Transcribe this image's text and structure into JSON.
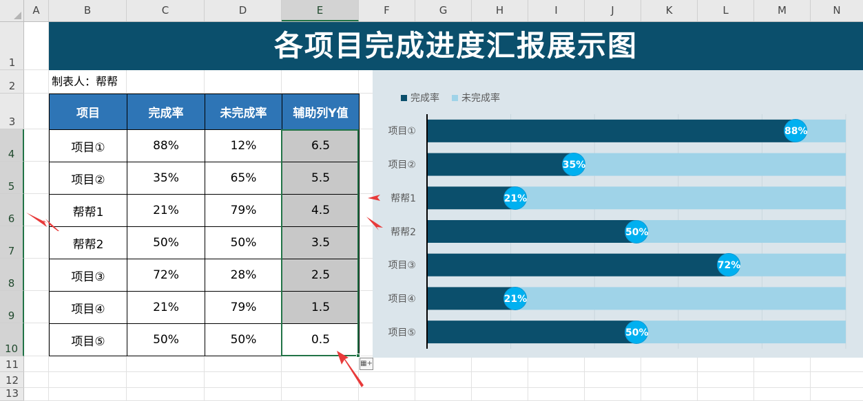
{
  "columns": [
    "A",
    "B",
    "C",
    "D",
    "E",
    "F",
    "G",
    "H",
    "I",
    "J",
    "K",
    "L",
    "M",
    "N"
  ],
  "selected_column": "E",
  "rows": [
    "1",
    "2",
    "3",
    "4",
    "5",
    "6",
    "7",
    "8",
    "9",
    "10",
    "11",
    "12",
    "13"
  ],
  "title": "各项目完成进度汇报展示图",
  "maker": "制表人：帮帮",
  "table": {
    "headers": [
      "项目",
      "完成率",
      "未完成率",
      "辅助列Y值"
    ],
    "rows": [
      [
        "项目①",
        "88%",
        "12%",
        "6.5"
      ],
      [
        "项目②",
        "35%",
        "65%",
        "5.5"
      ],
      [
        "帮帮1",
        "21%",
        "79%",
        "4.5"
      ],
      [
        "帮帮2",
        "50%",
        "50%",
        "3.5"
      ],
      [
        "项目③",
        "72%",
        "28%",
        "2.5"
      ],
      [
        "项目④",
        "21%",
        "79%",
        "1.5"
      ],
      [
        "项目⑤",
        "50%",
        "50%",
        "0.5"
      ]
    ]
  },
  "chart_data": {
    "type": "bar",
    "orientation": "horizontal",
    "stacked": true,
    "categories": [
      "项目①",
      "项目②",
      "帮帮1",
      "帮帮2",
      "项目③",
      "项目④",
      "项目⑤"
    ],
    "series": [
      {
        "name": "完成率",
        "values": [
          88,
          35,
          21,
          50,
          72,
          21,
          50
        ],
        "color": "#0b4f6c"
      },
      {
        "name": "未完成率",
        "values": [
          12,
          65,
          79,
          50,
          28,
          79,
          50
        ],
        "color": "#9fd3e8"
      }
    ],
    "data_labels": [
      "88%",
      "35%",
      "21%",
      "50%",
      "72%",
      "21%",
      "50%"
    ],
    "xlim": [
      0,
      100
    ],
    "legend_position": "top-left",
    "grid": true,
    "background": "#dbe5eb",
    "label_bubble_color": "#00b0f0"
  },
  "colors": {
    "title_bg": "#0b4f6c",
    "header_bg": "#2e75b6",
    "helper_cell_bg": "#c8c8c8",
    "annotation_arrow": "#e83a3a",
    "selection": "#217346"
  }
}
